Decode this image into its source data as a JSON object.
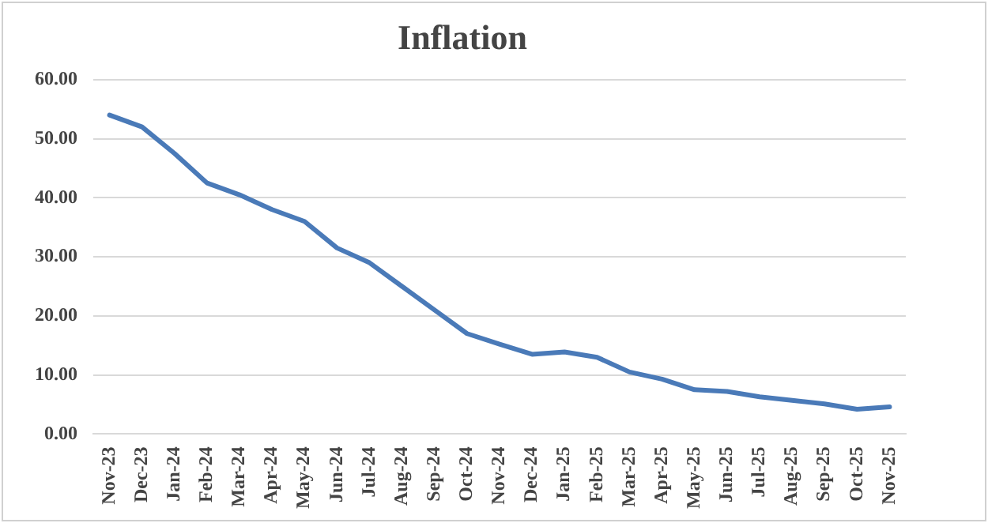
{
  "chart_data": {
    "type": "line",
    "title": "Inflation",
    "categories": [
      "Nov-23",
      "Dec-23",
      "Jan-24",
      "Feb-24",
      "Mar-24",
      "Apr-24",
      "May-24",
      "Jun-24",
      "Jul-24",
      "Aug-24",
      "Sep-24",
      "Oct-24",
      "Nov-24",
      "Dec-24",
      "Jan-25",
      "Feb-25",
      "Mar-25",
      "Apr-25",
      "May-25",
      "Jun-25",
      "Jul-25",
      "Aug-25",
      "Sep-25",
      "Oct-25",
      "Nov-25"
    ],
    "series": [
      {
        "color": "#4a7ab8",
        "values": [
          54,
          52,
          47.5,
          42.5,
          40.5,
          38,
          36,
          31.5,
          29,
          25,
          21,
          17,
          15.2,
          13.5,
          13.9,
          13,
          10.5,
          9.3,
          7.5,
          7.2,
          6.3,
          5.7,
          5.1,
          4.2,
          4.6
        ]
      }
    ],
    "ylim": [
      0,
      60
    ],
    "yticks": [
      {
        "value": 0,
        "label": "0.00"
      },
      {
        "value": 10,
        "label": "10.00"
      },
      {
        "value": 20,
        "label": "20.00"
      },
      {
        "value": 30,
        "label": "30.00"
      },
      {
        "value": 40,
        "label": "40.00"
      },
      {
        "value": 50,
        "label": "50.00"
      },
      {
        "value": 60,
        "label": "60.00"
      }
    ],
    "grid": "y",
    "legend": false,
    "marker": "none",
    "line_style": "solid"
  }
}
